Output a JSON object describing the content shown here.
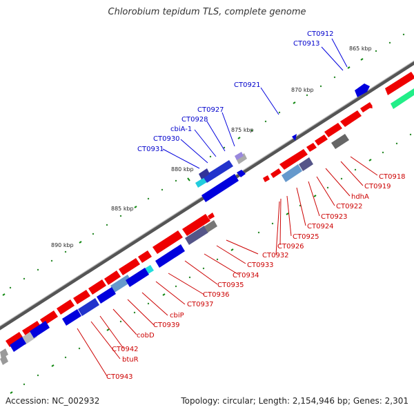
{
  "title": "Chlorobium tepidum TLS, complete genome",
  "footer": {
    "accession": "Accession: NC_002932",
    "summary": "Topology: circular; Length: 2,154,946 bp; Genes: 2,301"
  },
  "colors": {
    "backbone": "#777777",
    "forward_gene": "#ee0000",
    "reverse_gene": "#0000dd",
    "label_forward": "#cc0000",
    "label_reverse": "#0000cc",
    "tick": "#118811"
  },
  "ticks": [
    "865 kbp",
    "870 kbp",
    "875 kbp",
    "880 kbp",
    "885 kbp",
    "890 kbp"
  ],
  "blue_labels": [
    "CT0912",
    "CT0913",
    "CT0921",
    "CT0927",
    "CT0928",
    "cbiA-1",
    "CT0930",
    "CT0931"
  ],
  "red_labels": [
    "CT0918",
    "CT0919",
    "hdhA",
    "CT0922",
    "CT0923",
    "CT0924",
    "CT0925",
    "CT0926",
    "CT0932",
    "CT0933",
    "CT0934",
    "CT0935",
    "CT0936",
    "CT0937",
    "cbiP",
    "CT0939",
    "cobD",
    "CT0942",
    "btuR",
    "CT0943"
  ]
}
